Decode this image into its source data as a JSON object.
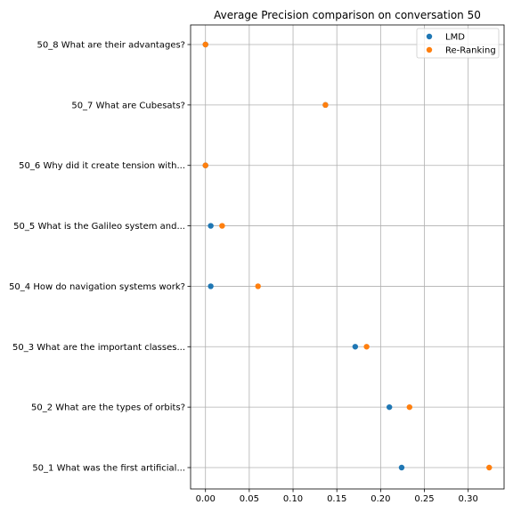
{
  "chart_data": {
    "type": "scatter",
    "title": "Average Precision comparison on conversation 50",
    "xlabel": "",
    "ylabel": "",
    "xlim": [
      -0.017,
      0.341
    ],
    "xticks": [
      0.0,
      0.05,
      0.1,
      0.15,
      0.2,
      0.25,
      0.3
    ],
    "xtick_labels": [
      "0.00",
      "0.05",
      "0.10",
      "0.15",
      "0.20",
      "0.25",
      "0.30"
    ],
    "categories": [
      "50_1 What was the first artificial...",
      "50_2 What are the types of orbits?",
      "50_3 What are the important classes...",
      "50_4 How do navigation systems work?",
      "50_5 What is the Galileo system and...",
      "50_6 Why did it create tension with...",
      "50_7 What are Cubesats?",
      "50_8 What are their advantages?"
    ],
    "series": [
      {
        "name": "LMD",
        "color": "#1f77b4",
        "values": [
          0.224,
          0.21,
          0.171,
          0.006,
          0.006,
          0.0,
          0.137,
          0.0
        ]
      },
      {
        "name": "Re-Ranking",
        "color": "#ff7f0e",
        "values": [
          0.324,
          0.233,
          0.184,
          0.06,
          0.019,
          0.0,
          0.137,
          0.0
        ]
      }
    ],
    "grid": true,
    "legend_position": "top-right"
  }
}
